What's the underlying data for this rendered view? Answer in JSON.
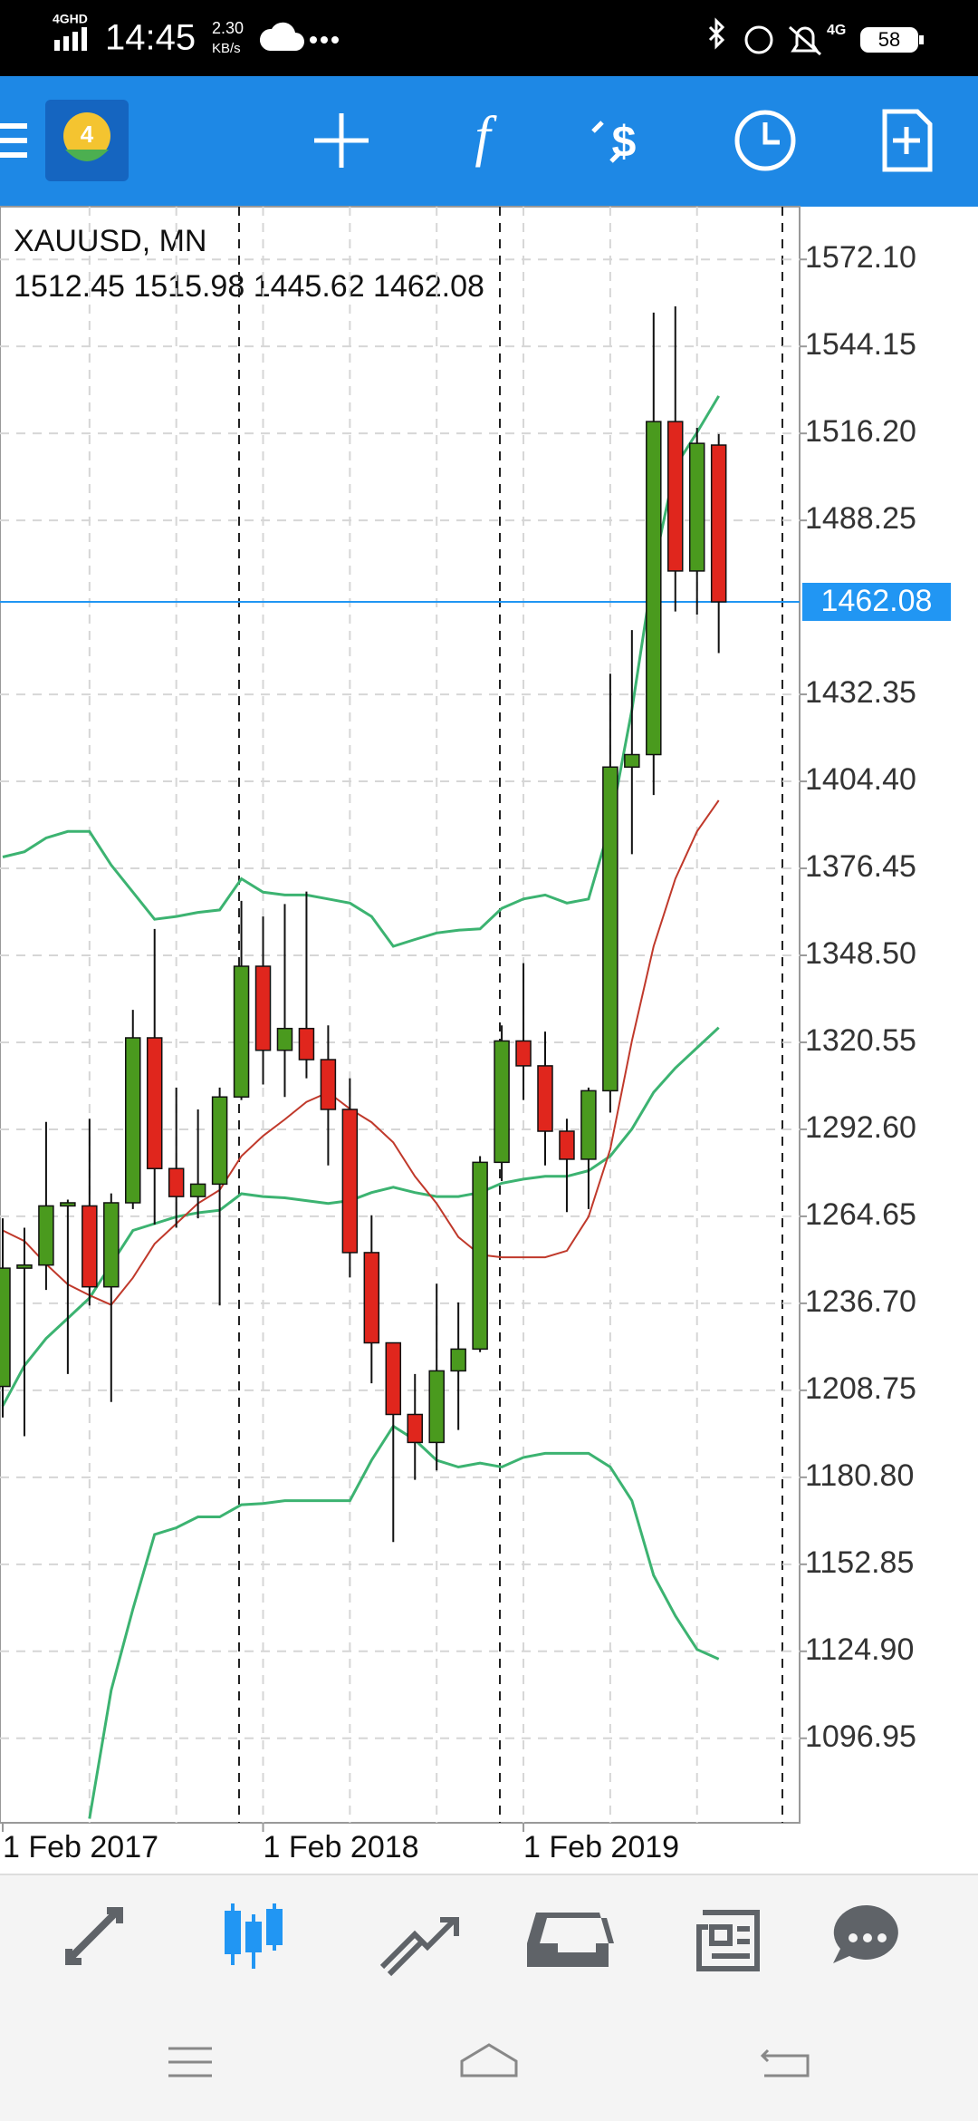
{
  "status_bar": {
    "network": "4GHD",
    "time": "14:45",
    "speed": "2.30",
    "speed_unit": "KB/s",
    "network_right": "4G",
    "battery": "58"
  },
  "chart_data": {
    "type": "candlestick",
    "title": "XAUUSD, MN",
    "subtitle": "1512.45 1515.98 1445.62 1462.08",
    "categories": [
      "1 Feb 2017",
      null,
      null,
      null,
      null,
      null,
      null,
      null,
      null,
      null,
      null,
      null,
      "1 Feb 2018",
      null,
      null,
      null,
      null,
      null,
      null,
      null,
      null,
      null,
      null,
      null,
      "1 Feb 2019",
      null,
      null,
      null,
      null,
      null,
      null,
      null,
      null,
      null
    ],
    "open": [
      1210,
      1248,
      1249,
      1268,
      1268,
      1242,
      1269,
      1322,
      1280,
      1271,
      1275,
      1303,
      1345,
      1318,
      1325,
      1315,
      1299,
      1253,
      1224,
      1201,
      1192,
      1215,
      1222,
      1282,
      1321,
      1313,
      1292,
      1283,
      1305,
      1409,
      1413,
      1520,
      1472,
      1512.45
    ],
    "high": [
      1264,
      1261,
      1295,
      1270,
      1296,
      1272,
      1331,
      1357,
      1306,
      1299,
      1306,
      1366,
      1361,
      1365,
      1369,
      1326,
      1309,
      1265,
      1223,
      1214,
      1243,
      1237,
      1284,
      1326,
      1346,
      1324,
      1296,
      1306,
      1439,
      1453,
      1555,
      1557,
      1518,
      1515.98
    ],
    "low": [
      1200,
      1194,
      1241,
      1214,
      1236,
      1205,
      1267,
      1262,
      1261,
      1264,
      1236,
      1302,
      1307,
      1303,
      1309,
      1281,
      1245,
      1211,
      1160,
      1180,
      1183,
      1196,
      1221,
      1276,
      1302,
      1281,
      1266,
      1267,
      1298,
      1381,
      1400,
      1459,
      1458,
      1445.62
    ],
    "close": [
      1248,
      1249,
      1268,
      1269,
      1242,
      1269,
      1322,
      1280,
      1271,
      1275,
      1303,
      1345,
      1318,
      1325,
      1315,
      1299,
      1253,
      1224,
      1201,
      1192,
      1215,
      1222,
      1282,
      1321,
      1313,
      1292,
      1283,
      1305,
      1409,
      1413,
      1520,
      1472,
      1513,
      1462.08
    ],
    "up_color": "#4a9a1e",
    "down_color": "#e0261d",
    "lines": [
      {
        "color": "#3cb371",
        "values": [
          1380.1,
          1381.8,
          1386.2,
          1388.3,
          1388.3,
          1377.5,
          1368.8,
          1360.1,
          1361.0,
          1362.3,
          1363.1,
          1373.1,
          1368.8,
          1367.9,
          1367.9,
          1366.6,
          1365.3,
          1361.0,
          1351.4,
          1353.6,
          1355.7,
          1356.6,
          1357.0,
          1363.6,
          1366.6,
          1367.9,
          1365.3,
          1366.6,
          1390.5,
          1427.4,
          1473.0,
          1505.6,
          1516.5,
          1528.2
        ]
      },
      {
        "color": "#3cb371",
        "values": [
          1203.7,
          1216.7,
          1225.4,
          1231.9,
          1238.4,
          1249.3,
          1260.1,
          1262.3,
          1264.5,
          1265.8,
          1266.6,
          1271.9,
          1271.0,
          1270.6,
          1269.7,
          1268.8,
          1269.7,
          1272.3,
          1274.0,
          1272.3,
          1271.0,
          1271.0,
          1272.3,
          1275.3,
          1276.6,
          1277.5,
          1277.5,
          1279.3,
          1284.0,
          1292.7,
          1304.5,
          1312.3,
          1318.8,
          1325.3
        ]
      },
      {
        "color": "#3cb371",
        "values": [
          null,
          null,
          null,
          null,
          1071.1,
          1112.4,
          1138.5,
          1162.4,
          1164.6,
          1168.1,
          1168.1,
          1172.0,
          1172.4,
          1173.3,
          1173.3,
          1173.3,
          1173.3,
          1186.3,
          1197.2,
          1192.8,
          1186.3,
          1184.1,
          1185.4,
          1184.1,
          1187.2,
          1188.5,
          1188.5,
          1188.5,
          1184.1,
          1173.3,
          1149.3,
          1136.3,
          1125.5,
          1122.4
        ]
      },
      {
        "color": "#c0392b",
        "values": [
          1260.1,
          1256.7,
          1249.3,
          1242.8,
          1239.3,
          1236.2,
          1244.9,
          1255.8,
          1262.3,
          1268.8,
          1273.1,
          1284.0,
          1290.5,
          1295.8,
          1301.4,
          1304.5,
          1299.2,
          1294.9,
          1288.4,
          1277.5,
          1268.8,
          1258.0,
          1252.3,
          1251.5,
          1251.5,
          1251.5,
          1253.6,
          1264.5,
          1286.2,
          1321.0,
          1351.4,
          1373.1,
          1388.3,
          1398.3
        ]
      }
    ],
    "ylim": [
      1069.8,
      1589.05
    ],
    "yticks": [
      {
        "value": 1572.1,
        "label": "1572.10"
      },
      1544.15,
      {
        "value": 1516.2,
        "label": "1516.20"
      },
      1488.25,
      1432.35,
      {
        "value": 1404.4,
        "label": "1404.40"
      },
      1376.45,
      {
        "value": 1348.5,
        "label": "1348.50"
      },
      1320.55,
      {
        "value": 1292.6,
        "label": "1292.60"
      },
      1264.65,
      {
        "value": 1236.7,
        "label": "1236.70"
      },
      1208.75,
      {
        "value": 1180.8,
        "label": "1180.80"
      },
      1152.85,
      {
        "value": 1124.9,
        "label": "1124.90"
      },
      1096.95
    ],
    "current_price": {
      "value": 1462.08,
      "label": "1462.08"
    },
    "current_color": "#2196f3",
    "grid": true
  }
}
